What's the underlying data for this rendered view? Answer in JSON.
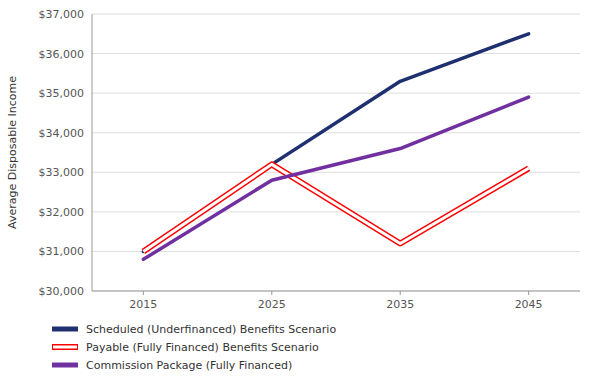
{
  "chart_data": {
    "type": "line",
    "y_label": "Average Disposable Income",
    "x": [
      2015,
      2025,
      2035,
      2045
    ],
    "series": [
      {
        "name": "Scheduled (Underfinanced) Benefits Scenario",
        "color": "#1F3070",
        "values": [
          31000,
          33200,
          35300,
          36500
        ]
      },
      {
        "name": "Payable (Fully Financed) Benefits Scenario",
        "color": "#FF0000",
        "line_style": "hollow",
        "values": [
          31000,
          33200,
          31200,
          33100
        ]
      },
      {
        "name": "Commission Package (Fully Financed)",
        "color": "#7030A0",
        "values": [
          30800,
          32800,
          33600,
          34900
        ]
      }
    ],
    "xlim": [
      2011,
      2049
    ],
    "xticks": [
      2015,
      2025,
      2035,
      2045
    ],
    "ylim": [
      30000,
      37000
    ],
    "yticks": [
      {
        "value": 30000,
        "label": "$30,000"
      },
      {
        "value": 31000,
        "label": "$31,000"
      },
      {
        "value": 32000,
        "label": "$32,000"
      },
      {
        "value": 33000,
        "label": "$33,000"
      },
      {
        "value": 34000,
        "label": "$34,000"
      },
      {
        "value": 35000,
        "label": "$35,000"
      },
      {
        "value": 36000,
        "label": "$36,000"
      },
      {
        "value": 37000,
        "label": "$37,000"
      }
    ],
    "grid": true,
    "legend": "bottom"
  }
}
